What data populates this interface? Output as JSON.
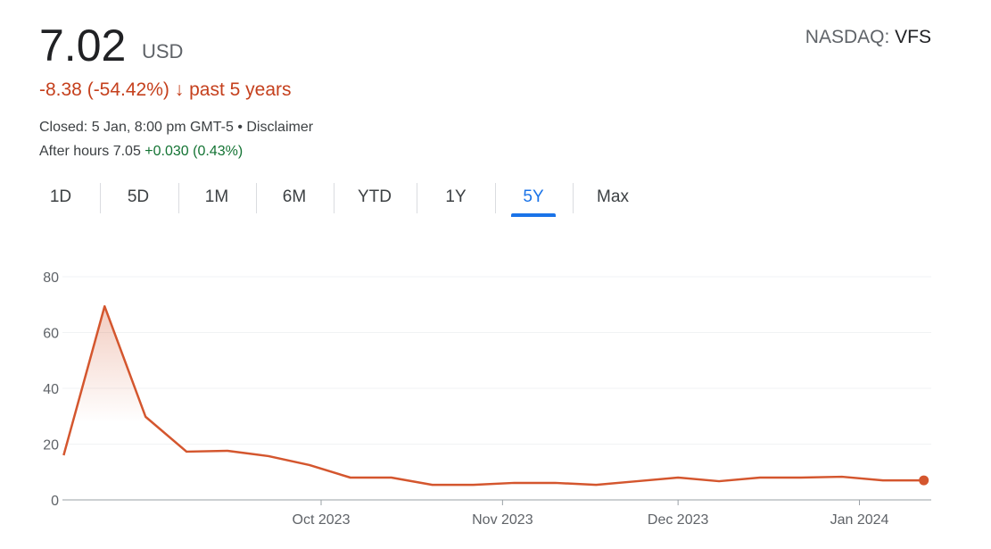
{
  "quote": {
    "price": "7.02",
    "currency": "USD",
    "exchange": "NASDAQ:",
    "ticker": "VFS",
    "change": "-8.38 (-54.42%)",
    "change_arrow": "↓",
    "change_period": "past 5 years",
    "closed": "Closed: 5 Jan, 8:00 pm GMT-5 • ",
    "disclaimer": "Disclaimer",
    "after_label": "After hours 7.05 ",
    "after_change": "+0.030 (0.43%)"
  },
  "tabs": [
    {
      "label": "1D"
    },
    {
      "label": "5D"
    },
    {
      "label": "1M"
    },
    {
      "label": "6M"
    },
    {
      "label": "YTD"
    },
    {
      "label": "1Y"
    },
    {
      "label": "5Y",
      "active": true
    },
    {
      "label": "Max"
    }
  ],
  "colors": {
    "line": "#d4562e",
    "accent": "#1a73e8",
    "negative": "#c5401d",
    "positive": "#137333"
  },
  "chart_data": {
    "type": "area",
    "x": [
      "2023-08-18",
      "2023-08-25",
      "2023-09-01",
      "2023-09-08",
      "2023-09-15",
      "2023-09-22",
      "2023-09-29",
      "2023-10-06",
      "2023-10-13",
      "2023-10-20",
      "2023-10-27",
      "2023-11-03",
      "2023-11-10",
      "2023-11-17",
      "2023-11-24",
      "2023-12-01",
      "2023-12-08",
      "2023-12-15",
      "2023-12-22",
      "2023-12-29",
      "2024-01-05",
      "2024-01-12"
    ],
    "values": [
      16,
      69.4,
      29.8,
      17.3,
      17.6,
      15.7,
      12.5,
      8,
      8,
      5.4,
      5.4,
      6.1,
      6.1,
      5.4,
      6.7,
      8,
      6.7,
      8,
      8,
      8.3,
      7.0,
      7.02
    ],
    "ylim": [
      0,
      80
    ],
    "yticks": [
      "0",
      "20",
      "40",
      "60",
      "80"
    ],
    "xticks": [
      {
        "date": "2023-10-01",
        "label": "Oct 2023"
      },
      {
        "date": "2023-11-01",
        "label": "Nov 2023"
      },
      {
        "date": "2023-12-01",
        "label": "Dec 2023"
      },
      {
        "date": "2024-01-01",
        "label": "Jan 2024"
      }
    ],
    "grid": true
  }
}
